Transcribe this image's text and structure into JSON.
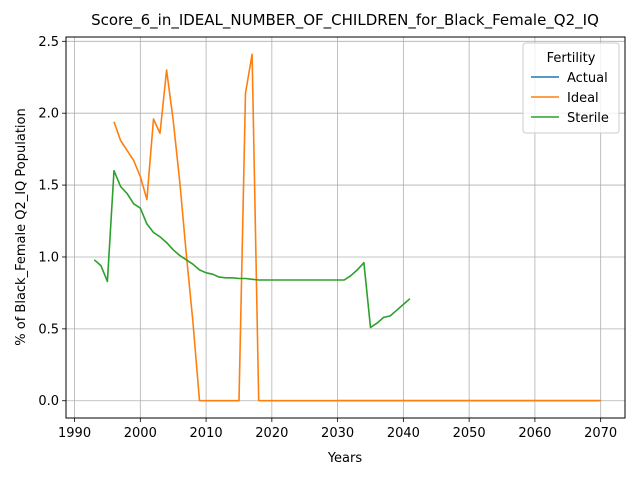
{
  "chart_data": {
    "type": "line",
    "title": "Score_6_in_IDEAL_NUMBER_OF_CHILDREN_for_Black_Female_Q2_IQ",
    "xlabel": "Years",
    "ylabel": "% of Black_Female Q2_IQ Population",
    "xlim": [
      1988.7,
      2073.7
    ],
    "ylim": [
      -0.12,
      2.53
    ],
    "xticks": [
      1990,
      2000,
      2010,
      2020,
      2030,
      2040,
      2050,
      2060,
      2070
    ],
    "yticks": [
      0.0,
      0.5,
      1.0,
      1.5,
      2.0,
      2.5
    ],
    "ytick_labels": [
      "0.0",
      "0.5",
      "1.0",
      "1.5",
      "2.0",
      "2.5"
    ],
    "grid": true,
    "legend": {
      "title": "Fertility",
      "placement": "top-right"
    },
    "series": [
      {
        "name": "Actual",
        "color": "#1f77b4",
        "points": [
          [
            2030,
            0.0
          ],
          [
            2070,
            0.0
          ]
        ]
      },
      {
        "name": "Ideal",
        "color": "#ff7f0e",
        "points": [
          [
            1996,
            1.94
          ],
          [
            1997,
            1.81
          ],
          [
            1998,
            1.74
          ],
          [
            1999,
            1.67
          ],
          [
            2000,
            1.56
          ],
          [
            2001,
            1.4
          ],
          [
            2002,
            1.96
          ],
          [
            2003,
            1.86
          ],
          [
            2004,
            2.3
          ],
          [
            2005,
            1.95
          ],
          [
            2006,
            1.52
          ],
          [
            2007,
            1.02
          ],
          [
            2008,
            0.55
          ],
          [
            2009,
            0.0
          ],
          [
            2010,
            0.0
          ],
          [
            2015,
            0.0
          ],
          [
            2016,
            2.14
          ],
          [
            2017,
            2.41
          ],
          [
            2018,
            0.0
          ],
          [
            2030,
            0.0
          ],
          [
            2040,
            0.0
          ],
          [
            2050,
            0.0
          ],
          [
            2060,
            0.0
          ],
          [
            2070,
            0.0
          ]
        ]
      },
      {
        "name": "Sterile",
        "color": "#2ca02c",
        "points": [
          [
            1993,
            0.98
          ],
          [
            1994,
            0.94
          ],
          [
            1995,
            0.83
          ],
          [
            1996,
            1.6
          ],
          [
            1997,
            1.49
          ],
          [
            1998,
            1.44
          ],
          [
            1999,
            1.37
          ],
          [
            2000,
            1.34
          ],
          [
            2001,
            1.23
          ],
          [
            2002,
            1.17
          ],
          [
            2003,
            1.14
          ],
          [
            2004,
            1.1
          ],
          [
            2005,
            1.05
          ],
          [
            2006,
            1.01
          ],
          [
            2007,
            0.98
          ],
          [
            2008,
            0.95
          ],
          [
            2009,
            0.91
          ],
          [
            2010,
            0.89
          ],
          [
            2011,
            0.88
          ],
          [
            2012,
            0.86
          ],
          [
            2013,
            0.855
          ],
          [
            2014,
            0.855
          ],
          [
            2015,
            0.85
          ],
          [
            2016,
            0.85
          ],
          [
            2017,
            0.845
          ],
          [
            2018,
            0.84
          ],
          [
            2020,
            0.84
          ],
          [
            2025,
            0.84
          ],
          [
            2030,
            0.84
          ],
          [
            2031,
            0.84
          ],
          [
            2032,
            0.87
          ],
          [
            2033,
            0.91
          ],
          [
            2034,
            0.96
          ],
          [
            2035,
            0.51
          ],
          [
            2036,
            0.54
          ],
          [
            2037,
            0.58
          ],
          [
            2038,
            0.59
          ],
          [
            2039,
            0.63
          ],
          [
            2040,
            0.67
          ],
          [
            2041,
            0.71
          ]
        ]
      }
    ]
  }
}
